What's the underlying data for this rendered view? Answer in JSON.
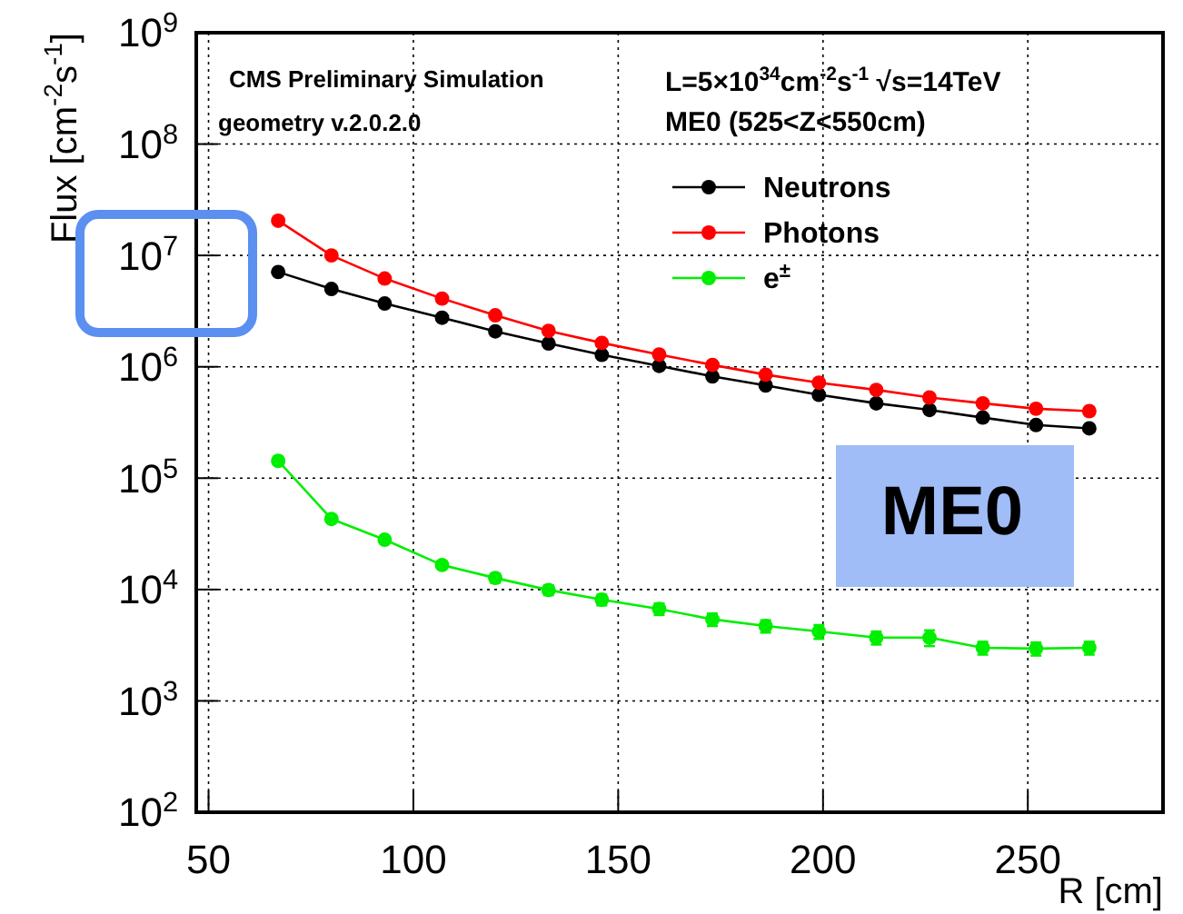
{
  "chart_data": {
    "type": "line",
    "xlabel": "R [cm]",
    "ylabel": "Flux [cm$^{-2}$s$^{-1}$]",
    "x": [
      67,
      80,
      93,
      107,
      120,
      133,
      146,
      160,
      173,
      186,
      199,
      213,
      226,
      239,
      252,
      265
    ],
    "series": [
      {
        "name": "Neutrons",
        "color": "#000000",
        "values": [
          7100000,
          5000000,
          3700000,
          2760000,
          2080000,
          1620000,
          1280000,
          1020000,
          820000,
          680000,
          560000,
          470000,
          410000,
          350000,
          300000,
          280000
        ]
      },
      {
        "name": "Photons",
        "color": "#ff0000",
        "values": [
          20500000,
          10000000,
          6200000,
          4100000,
          2900000,
          2100000,
          1640000,
          1290000,
          1040000,
          850000,
          720000,
          620000,
          530000,
          470000,
          420000,
          400000
        ]
      },
      {
        "name": "e$^{±}$",
        "color": "#00ee00",
        "values": [
          143000,
          43000,
          28000,
          16600,
          12700,
          9900,
          8100,
          6700,
          5400,
          4700,
          4200,
          3700,
          3700,
          3000,
          2950,
          3000
        ],
        "errors": [
          null,
          null,
          null,
          null,
          1200,
          1000,
          900,
          800,
          700,
          600,
          600,
          500,
          600,
          400,
          400,
          400
        ]
      }
    ],
    "log": "y",
    "xlim": [
      47,
      283
    ],
    "ylim": [
      100,
      1000000000
    ],
    "xticks": [
      50,
      100,
      150,
      200,
      250
    ],
    "yticks": [
      {
        "value": 100,
        "label": "10$^{2}$"
      },
      {
        "value": 1000,
        "label": "10$^{3}$"
      },
      {
        "value": 10000,
        "label": "10$^{4}$"
      },
      {
        "value": 100000,
        "label": "10$^{5}$"
      },
      {
        "value": 1000000,
        "label": "10$^{6}$"
      },
      {
        "value": 10000000,
        "label": "10$^{7}$"
      },
      {
        "value": 100000000,
        "label": "10$^{8}$"
      },
      {
        "value": 1000000000,
        "label": "10$^{9}$"
      }
    ],
    "grid": true,
    "legend": "top right",
    "marker": "circle",
    "line_style": "solid",
    "annotations": [
      "CMS Preliminary Simulation",
      "geometry v.2.0.2.0",
      "L=5×10$^{34}$cm$^{-2}$s$^{-1}$   √s=14TeV",
      "ME0 (525<Z<550cm)",
      "ME0"
    ]
  }
}
